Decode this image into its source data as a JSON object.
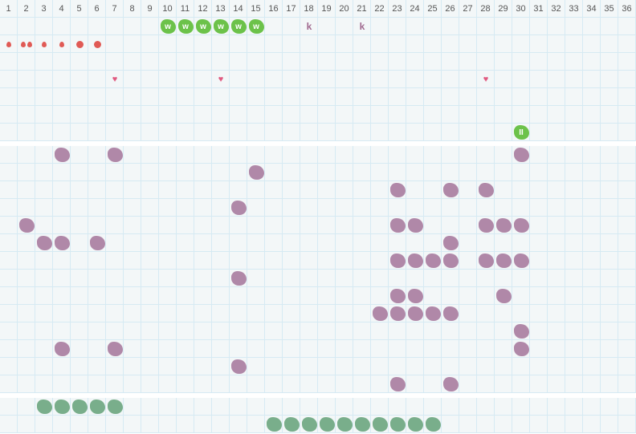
{
  "columns": [
    "1",
    "2",
    "3",
    "4",
    "5",
    "6",
    "7",
    "8",
    "9",
    "10",
    "11",
    "12",
    "13",
    "14",
    "15",
    "16",
    "17",
    "18",
    "19",
    "20",
    "21",
    "22",
    "23",
    "24",
    "25",
    "26",
    "27",
    "28",
    "29",
    "30",
    "31",
    "32",
    "33",
    "34",
    "35",
    "36"
  ],
  "colors": {
    "grid_bg": "#f3f7f8",
    "grid_line": "#d6eaf3",
    "green": "#6cc24a",
    "purple": "#b088a8",
    "teal": "#79ae8b",
    "red": "#e05a55",
    "heart": "#e05a80"
  },
  "sections": [
    {
      "rows": [
        [
          {
            "col": 10,
            "type": "w",
            "label": "w"
          },
          {
            "col": 11,
            "type": "w",
            "label": "w"
          },
          {
            "col": 12,
            "type": "w",
            "label": "w"
          },
          {
            "col": 13,
            "type": "w",
            "label": "w"
          },
          {
            "col": 14,
            "type": "w",
            "label": "w"
          },
          {
            "col": 15,
            "type": "w",
            "label": "w"
          },
          {
            "col": 18,
            "type": "k",
            "label": "k"
          },
          {
            "col": 21,
            "type": "k",
            "label": "k"
          }
        ],
        [
          {
            "col": 1,
            "type": "drop"
          },
          {
            "col": 2,
            "type": "drop2"
          },
          {
            "col": 3,
            "type": "drop"
          },
          {
            "col": 4,
            "type": "drop"
          },
          {
            "col": 5,
            "type": "dot"
          },
          {
            "col": 6,
            "type": "dot"
          }
        ],
        [],
        [
          {
            "col": 7,
            "type": "heart"
          },
          {
            "col": 13,
            "type": "heart"
          },
          {
            "col": 28,
            "type": "heart"
          }
        ],
        [],
        [],
        [
          {
            "col": 30,
            "type": "ii",
            "label": "II"
          }
        ]
      ]
    },
    {
      "rows": [
        [
          {
            "col": 4,
            "type": "purple"
          },
          {
            "col": 7,
            "type": "purple"
          },
          {
            "col": 30,
            "type": "purple"
          }
        ],
        [
          {
            "col": 15,
            "type": "purple"
          }
        ],
        [
          {
            "col": 23,
            "type": "purple"
          },
          {
            "col": 26,
            "type": "purple"
          },
          {
            "col": 28,
            "type": "purple"
          }
        ],
        [
          {
            "col": 14,
            "type": "purple"
          }
        ],
        [
          {
            "col": 2,
            "type": "purple"
          },
          {
            "col": 23,
            "type": "purple"
          },
          {
            "col": 24,
            "type": "purple"
          },
          {
            "col": 28,
            "type": "purple"
          },
          {
            "col": 29,
            "type": "purple"
          },
          {
            "col": 30,
            "type": "purple"
          }
        ],
        [
          {
            "col": 3,
            "type": "purple"
          },
          {
            "col": 4,
            "type": "purple"
          },
          {
            "col": 6,
            "type": "purple"
          },
          {
            "col": 26,
            "type": "purple"
          }
        ],
        [
          {
            "col": 23,
            "type": "purple"
          },
          {
            "col": 24,
            "type": "purple"
          },
          {
            "col": 25,
            "type": "purple"
          },
          {
            "col": 26,
            "type": "purple"
          },
          {
            "col": 28,
            "type": "purple"
          },
          {
            "col": 29,
            "type": "purple"
          },
          {
            "col": 30,
            "type": "purple"
          }
        ],
        [
          {
            "col": 14,
            "type": "purple"
          }
        ],
        [
          {
            "col": 23,
            "type": "purple"
          },
          {
            "col": 24,
            "type": "purple"
          },
          {
            "col": 29,
            "type": "purple"
          }
        ],
        [
          {
            "col": 22,
            "type": "purple"
          },
          {
            "col": 23,
            "type": "purple"
          },
          {
            "col": 24,
            "type": "purple"
          },
          {
            "col": 25,
            "type": "purple"
          },
          {
            "col": 26,
            "type": "purple"
          }
        ],
        [
          {
            "col": 30,
            "type": "purple"
          }
        ],
        [
          {
            "col": 4,
            "type": "purple"
          },
          {
            "col": 7,
            "type": "purple"
          },
          {
            "col": 30,
            "type": "purple"
          }
        ],
        [
          {
            "col": 14,
            "type": "purple"
          }
        ],
        [
          {
            "col": 23,
            "type": "purple"
          },
          {
            "col": 26,
            "type": "purple"
          }
        ]
      ]
    },
    {
      "rows": [
        [
          {
            "col": 3,
            "type": "teal"
          },
          {
            "col": 4,
            "type": "teal"
          },
          {
            "col": 5,
            "type": "teal"
          },
          {
            "col": 6,
            "type": "teal"
          },
          {
            "col": 7,
            "type": "teal"
          }
        ],
        [
          {
            "col": 16,
            "type": "teal"
          },
          {
            "col": 17,
            "type": "teal"
          },
          {
            "col": 18,
            "type": "teal"
          },
          {
            "col": 19,
            "type": "teal"
          },
          {
            "col": 20,
            "type": "teal"
          },
          {
            "col": 21,
            "type": "teal"
          },
          {
            "col": 22,
            "type": "teal"
          },
          {
            "col": 23,
            "type": "teal"
          },
          {
            "col": 24,
            "type": "teal"
          },
          {
            "col": 25,
            "type": "teal"
          }
        ]
      ]
    }
  ]
}
